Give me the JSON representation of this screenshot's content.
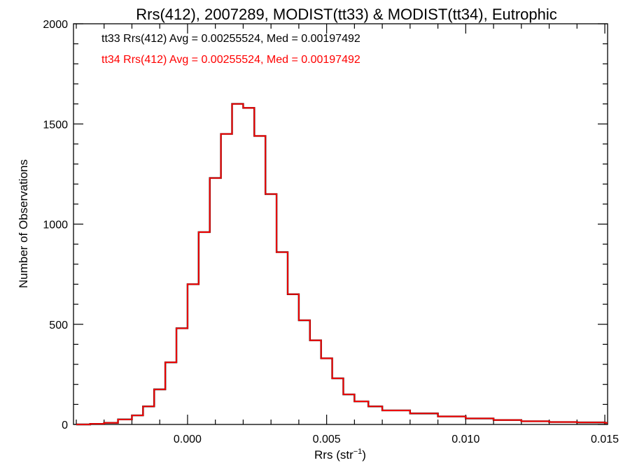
{
  "chart_data": {
    "type": "histogram",
    "title": "Rrs(412), 2007289, MODIST(tt33) & MODIST(tt34), Eutrophic",
    "xlabel": "Rrs (str",
    "xlabel_sup": "−1",
    "xlabel_close": ")",
    "ylabel": "Number of Observations",
    "xlim": [
      -0.0041,
      0.0151
    ],
    "ylim": [
      0,
      2000
    ],
    "x_ticks": [
      0.0,
      0.005,
      0.01,
      0.015
    ],
    "x_tick_labels": [
      "0.000",
      "0.005",
      "0.010",
      "0.015"
    ],
    "y_ticks": [
      0,
      500,
      1000,
      1500,
      2000
    ],
    "y_tick_labels": [
      "0",
      "500",
      "1000",
      "1500",
      "2000"
    ],
    "grid": false,
    "legend_position": "top-left",
    "series": [
      {
        "name": "tt33 Rrs(412) Avg = 0.00255524, Med = 0.00197492",
        "color": "#000000",
        "x": [
          -0.004,
          -0.0035,
          -0.003,
          -0.0025,
          -0.002,
          -0.0016,
          -0.0012,
          -0.0008,
          -0.0004,
          0.0,
          0.0004,
          0.0008,
          0.0012,
          0.0016,
          0.002,
          0.0024,
          0.0028,
          0.0032,
          0.0036,
          0.004,
          0.0044,
          0.0048,
          0.0052,
          0.0056,
          0.006,
          0.0065,
          0.007,
          0.008,
          0.009,
          0.01,
          0.011,
          0.012,
          0.013,
          0.014,
          0.015
        ],
        "y": [
          0,
          3,
          8,
          25,
          45,
          90,
          175,
          310,
          480,
          700,
          960,
          1230,
          1450,
          1600,
          1580,
          1440,
          1150,
          860,
          650,
          520,
          420,
          330,
          230,
          150,
          115,
          90,
          70,
          55,
          40,
          30,
          22,
          16,
          12,
          10,
          8
        ]
      },
      {
        "name": "tt34 Rrs(412) Avg = 0.00255524, Med = 0.00197492",
        "color": "#ff0000",
        "x": [
          -0.004,
          -0.0035,
          -0.003,
          -0.0025,
          -0.002,
          -0.0016,
          -0.0012,
          -0.0008,
          -0.0004,
          0.0,
          0.0004,
          0.0008,
          0.0012,
          0.0016,
          0.002,
          0.0024,
          0.0028,
          0.0032,
          0.0036,
          0.004,
          0.0044,
          0.0048,
          0.0052,
          0.0056,
          0.006,
          0.0065,
          0.007,
          0.008,
          0.009,
          0.01,
          0.011,
          0.012,
          0.013,
          0.014,
          0.015
        ],
        "y": [
          0,
          3,
          8,
          25,
          45,
          90,
          175,
          310,
          480,
          700,
          960,
          1230,
          1450,
          1600,
          1580,
          1440,
          1150,
          860,
          650,
          520,
          420,
          330,
          230,
          150,
          115,
          90,
          70,
          55,
          40,
          30,
          22,
          16,
          12,
          10,
          8
        ]
      }
    ]
  }
}
